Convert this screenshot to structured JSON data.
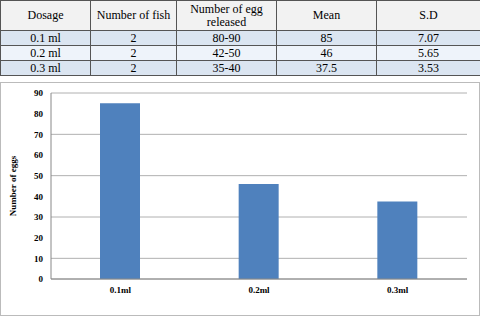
{
  "table": {
    "header": [
      "Dosage",
      "Number of fish",
      "Number of egg released",
      "Mean",
      "S.D"
    ],
    "rows": [
      [
        "0.1 ml",
        "2",
        "80-90",
        "85",
        "7.07"
      ],
      [
        "0.2 ml",
        "2",
        "42-50",
        "46",
        "5.65"
      ],
      [
        "0.3 ml",
        "2",
        "35-40",
        "37.5",
        "3.53"
      ]
    ]
  },
  "chart_data": {
    "type": "bar",
    "categories": [
      "0.1ml",
      "0.2ml",
      "0.3ml"
    ],
    "values": [
      85,
      46,
      37.5
    ],
    "color": "#4f81bd",
    "y_label": "Number of eggs",
    "ylim": [
      0,
      90
    ],
    "yticks": [
      0,
      10,
      20,
      30,
      40,
      50,
      60,
      70,
      80,
      90
    ],
    "grid": true
  }
}
